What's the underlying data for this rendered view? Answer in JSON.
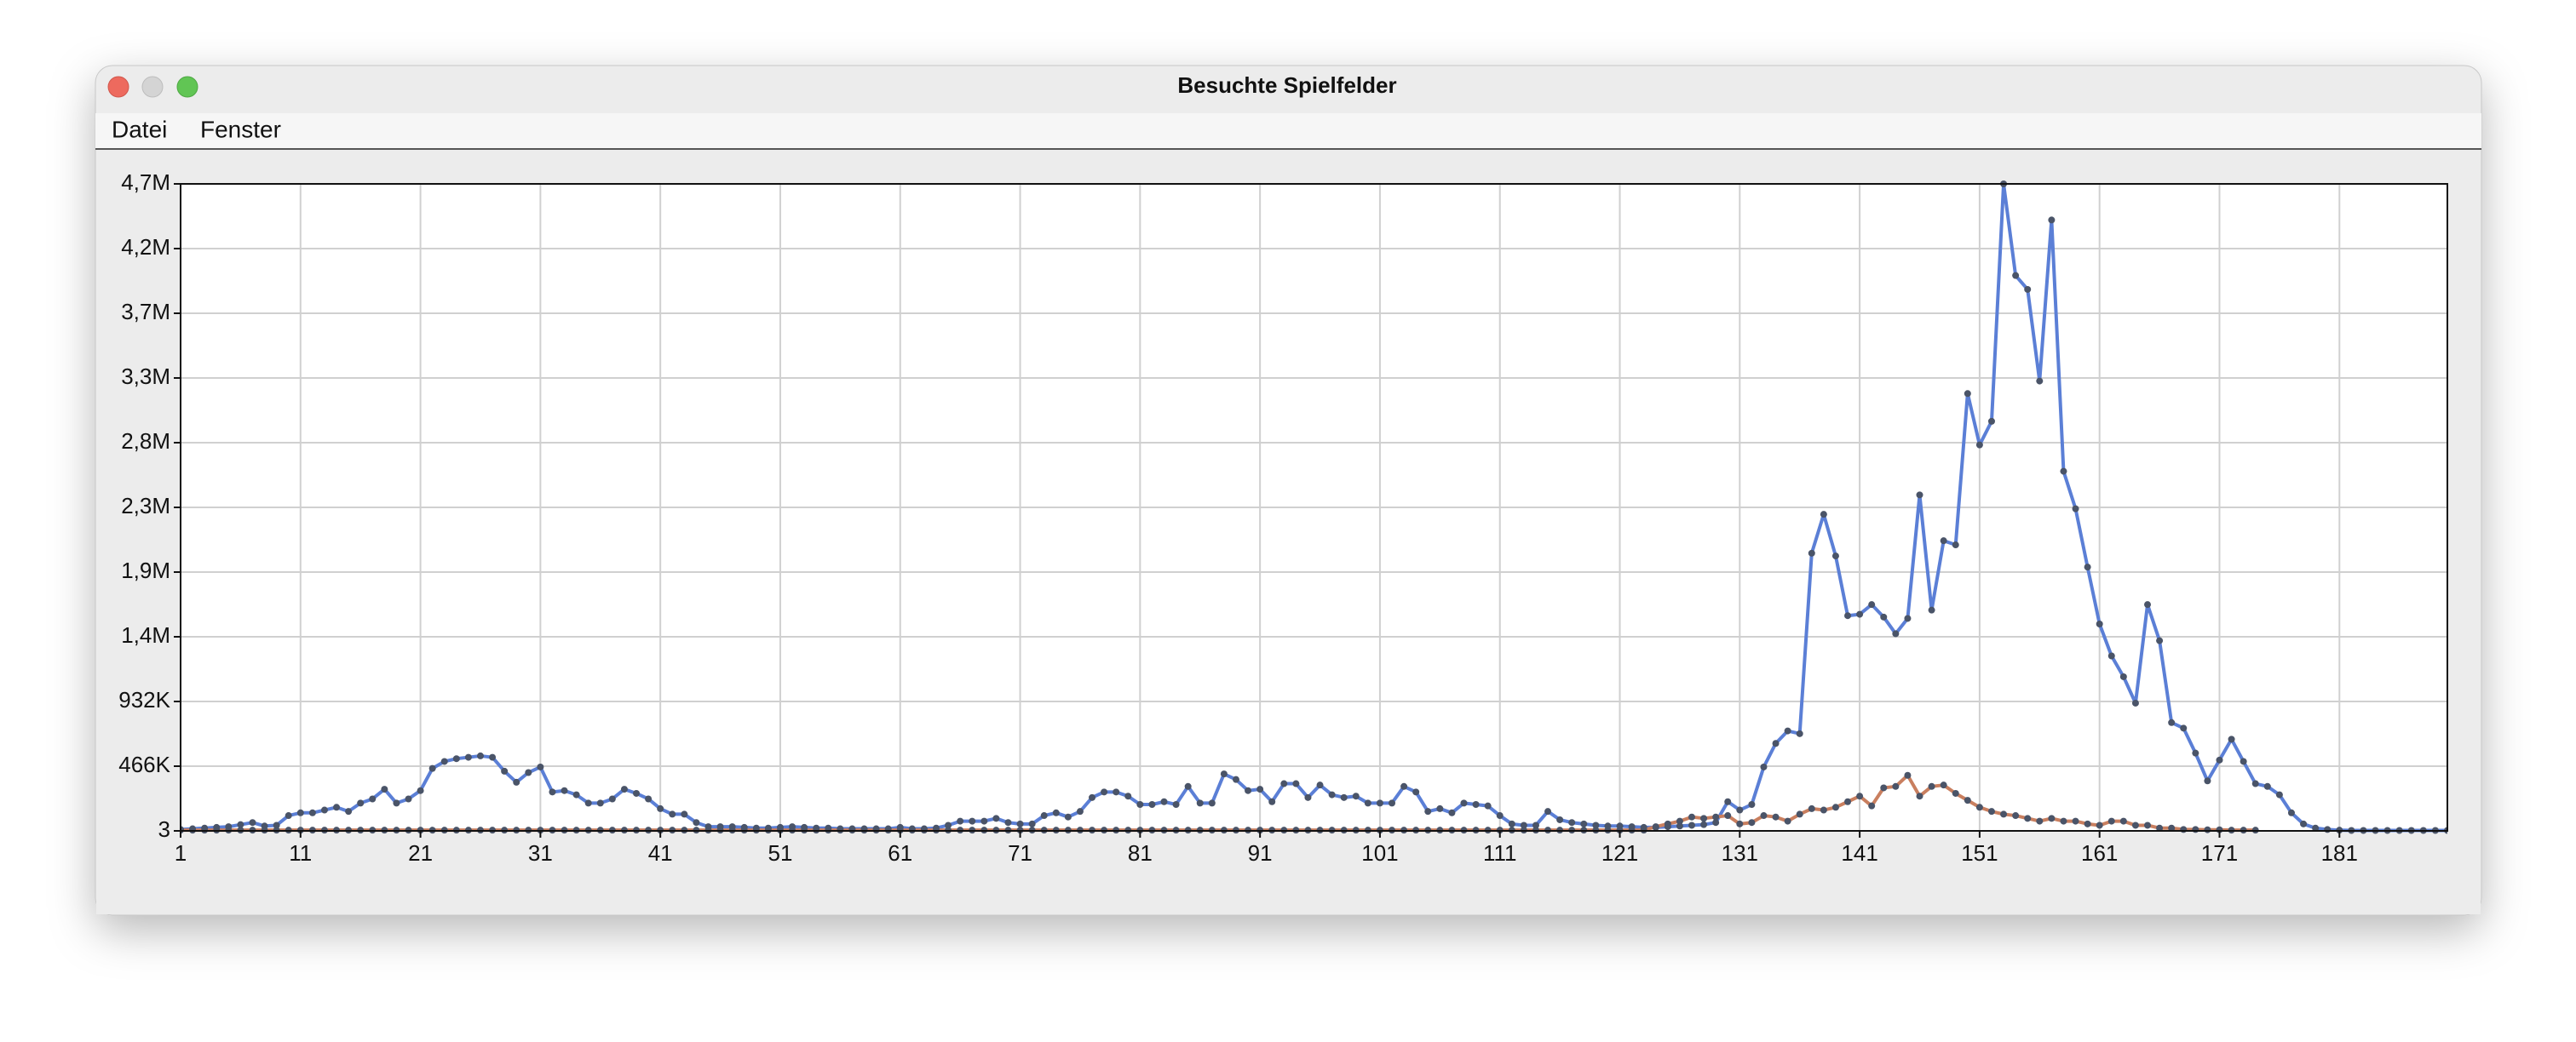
{
  "window": {
    "title": "Besuchte Spielfelder",
    "menu": [
      "Datei",
      "Fenster"
    ]
  },
  "chart_data": {
    "type": "line",
    "x": [
      1,
      2,
      3,
      4,
      5,
      6,
      7,
      8,
      9,
      10,
      11,
      12,
      13,
      14,
      15,
      16,
      17,
      18,
      19,
      20,
      21,
      22,
      23,
      24,
      25,
      26,
      27,
      28,
      29,
      30,
      31,
      32,
      33,
      34,
      35,
      36,
      37,
      38,
      39,
      40,
      41,
      42,
      43,
      44,
      45,
      46,
      47,
      48,
      49,
      50,
      51,
      52,
      53,
      54,
      55,
      56,
      57,
      58,
      59,
      60,
      61,
      62,
      63,
      64,
      65,
      66,
      67,
      68,
      69,
      70,
      71,
      72,
      73,
      74,
      75,
      76,
      77,
      78,
      79,
      80,
      81,
      82,
      83,
      84,
      85,
      86,
      87,
      88,
      89,
      90,
      91,
      92,
      93,
      94,
      95,
      96,
      97,
      98,
      99,
      100,
      101,
      102,
      103,
      104,
      105,
      106,
      107,
      108,
      109,
      110,
      111,
      112,
      113,
      114,
      115,
      116,
      117,
      118,
      119,
      120,
      121,
      122,
      123,
      124,
      125,
      126,
      127,
      128,
      129,
      130,
      131,
      132,
      133,
      134,
      135,
      136,
      137,
      138,
      139,
      140,
      141,
      142,
      143,
      144,
      145,
      146,
      147,
      148,
      149,
      150,
      151,
      152,
      153,
      154,
      155,
      156,
      157,
      158,
      159,
      160,
      161,
      162,
      163,
      164,
      165,
      166,
      167,
      168,
      169,
      170,
      171,
      172,
      173,
      174,
      175,
      176,
      177,
      178,
      179,
      180,
      181,
      182,
      183,
      184,
      185,
      186,
      187,
      188,
      189,
      190
    ],
    "series": [
      {
        "color": "#5b7fd6",
        "values": [
          10000,
          15000,
          20000,
          25000,
          30000,
          45000,
          60000,
          35000,
          40000,
          110000,
          130000,
          130000,
          150000,
          170000,
          140000,
          200000,
          230000,
          300000,
          200000,
          230000,
          290000,
          450000,
          500000,
          520000,
          530000,
          540000,
          530000,
          430000,
          350000,
          420000,
          460000,
          280000,
          290000,
          260000,
          200000,
          200000,
          230000,
          300000,
          270000,
          230000,
          160000,
          120000,
          120000,
          60000,
          30000,
          30000,
          30000,
          25000,
          20000,
          20000,
          25000,
          30000,
          25000,
          20000,
          20000,
          15000,
          15000,
          15000,
          15000,
          15000,
          25000,
          15000,
          15000,
          20000,
          40000,
          70000,
          70000,
          70000,
          90000,
          60000,
          50000,
          50000,
          110000,
          130000,
          100000,
          140000,
          240000,
          280000,
          280000,
          250000,
          190000,
          190000,
          210000,
          190000,
          320000,
          200000,
          200000,
          410000,
          370000,
          290000,
          300000,
          210000,
          340000,
          340000,
          240000,
          330000,
          260000,
          240000,
          250000,
          200000,
          200000,
          200000,
          320000,
          280000,
          140000,
          160000,
          130000,
          200000,
          190000,
          180000,
          110000,
          50000,
          40000,
          40000,
          140000,
          80000,
          60000,
          50000,
          40000,
          35000,
          35000,
          30000,
          25000,
          25000,
          30000,
          35000,
          40000,
          45000,
          60000,
          210000,
          150000,
          190000,
          460000,
          630000,
          720000,
          700000,
          2000000,
          2280000,
          1980000,
          1550000,
          1560000,
          1630000,
          1540000,
          1420000,
          1530000,
          2420000,
          1590000,
          2090000,
          2060000,
          3150000,
          2780000,
          2950000,
          4660000,
          4000000,
          3900000,
          3240000,
          4400000,
          2590000,
          2320000,
          1900000,
          1490000,
          1260000,
          1110000,
          920000,
          1630000,
          1370000,
          780000,
          740000,
          560000,
          360000,
          510000,
          660000,
          500000,
          340000,
          320000,
          260000,
          130000,
          50000,
          20000,
          10000,
          5000,
          3000,
          3000,
          3000,
          3000,
          3000,
          3000,
          3000,
          3000,
          3000
        ]
      },
      {
        "color": "#c97f5f",
        "values": [
          5000,
          5000,
          5000,
          5000,
          5000,
          5000,
          5000,
          5000,
          5000,
          5000,
          5000,
          5000,
          5000,
          5000,
          5000,
          5000,
          5000,
          5000,
          5000,
          5000,
          5000,
          5000,
          5000,
          5000,
          5000,
          5000,
          5000,
          5000,
          5000,
          5000,
          5000,
          5000,
          5000,
          5000,
          5000,
          5000,
          5000,
          5000,
          5000,
          5000,
          5000,
          5000,
          5000,
          5000,
          5000,
          5000,
          5000,
          5000,
          5000,
          5000,
          5000,
          5000,
          5000,
          5000,
          5000,
          5000,
          5000,
          5000,
          5000,
          5000,
          5000,
          5000,
          5000,
          5000,
          5000,
          5000,
          5000,
          5000,
          5000,
          5000,
          5000,
          5000,
          5000,
          5000,
          5000,
          5000,
          5000,
          5000,
          5000,
          5000,
          5000,
          5000,
          5000,
          5000,
          5000,
          5000,
          5000,
          5000,
          5000,
          5000,
          5000,
          5000,
          5000,
          5000,
          5000,
          5000,
          5000,
          5000,
          5000,
          5000,
          5000,
          5000,
          5000,
          5000,
          5000,
          5000,
          5000,
          5000,
          5000,
          5000,
          5000,
          5000,
          5000,
          5000,
          5000,
          5000,
          5000,
          5000,
          5000,
          5000,
          5000,
          5000,
          5000,
          30000,
          50000,
          70000,
          100000,
          90000,
          100000,
          110000,
          50000,
          60000,
          110000,
          100000,
          70000,
          120000,
          160000,
          150000,
          170000,
          210000,
          250000,
          180000,
          310000,
          320000,
          400000,
          250000,
          320000,
          330000,
          270000,
          220000,
          170000,
          140000,
          120000,
          110000,
          90000,
          70000,
          90000,
          70000,
          70000,
          50000,
          40000,
          70000,
          70000,
          40000,
          40000,
          20000,
          20000,
          10000,
          10000,
          8000,
          8000,
          5000,
          5000,
          5000,
          null,
          null,
          null,
          null,
          null,
          null,
          null,
          null,
          null,
          null,
          null,
          null,
          null,
          null,
          null,
          null
        ]
      }
    ],
    "xlim": [
      1,
      190
    ],
    "xticks": [
      1,
      11,
      21,
      31,
      41,
      51,
      61,
      71,
      81,
      91,
      101,
      111,
      121,
      131,
      141,
      151,
      161,
      171,
      181
    ],
    "ylim": [
      3,
      4660000
    ],
    "yticks": [
      3,
      {
        "value": 466000,
        "label": "466K"
      },
      {
        "value": 932000,
        "label": "932K"
      },
      {
        "value": 1398000,
        "label": "1,4M"
      },
      {
        "value": 1864000,
        "label": "1,9M"
      },
      {
        "value": 2330000,
        "label": "2,3M"
      },
      {
        "value": 2796000,
        "label": "2,8M"
      },
      {
        "value": 3262000,
        "label": "3,3M"
      },
      {
        "value": 3728000,
        "label": "3,7M"
      },
      {
        "value": 4194000,
        "label": "4,2M"
      },
      {
        "value": 4660000,
        "label": "4,7M"
      }
    ],
    "grid": true
  }
}
